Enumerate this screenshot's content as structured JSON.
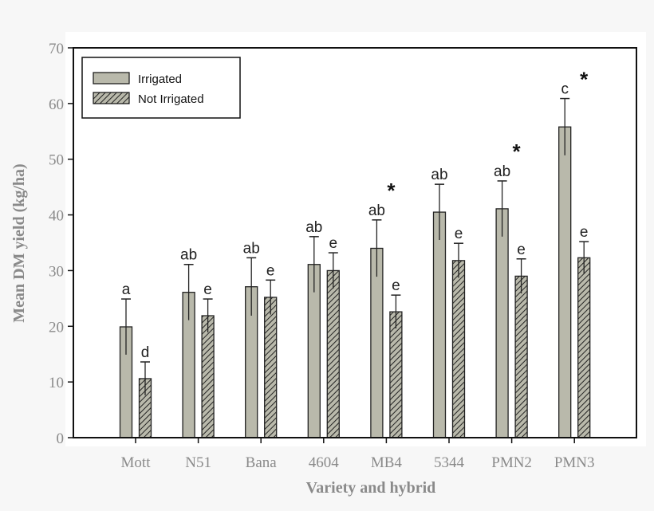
{
  "chart_data": {
    "type": "bar",
    "title": "",
    "xlabel": "Variety and hybrid",
    "ylabel": "Mean DM yield (kg/ha)",
    "ylim": [
      0,
      70
    ],
    "yticks": [
      0,
      10,
      20,
      30,
      40,
      50,
      60,
      70
    ],
    "grid": false,
    "legend_position": "top-left",
    "categories": [
      "Mott",
      "N51",
      "Bana",
      "4604",
      "MB4",
      "5344",
      "PMN2",
      "PMN3"
    ],
    "series": [
      {
        "name": "Irrigated",
        "pattern": "solid",
        "color": "#b9b9ab",
        "values": [
          19.9,
          26.1,
          27.1,
          31.1,
          34.0,
          40.5,
          41.1,
          55.8
        ],
        "error": [
          5.0,
          5.0,
          5.2,
          5.0,
          5.1,
          5.0,
          5.0,
          5.1
        ],
        "letters": [
          "a",
          "ab",
          "ab",
          "ab",
          "ab",
          "ab",
          "ab",
          "c"
        ]
      },
      {
        "name": "Not Irrigated",
        "pattern": "hatched",
        "color": "#b9b9ab",
        "values": [
          10.6,
          21.9,
          25.2,
          30.0,
          22.6,
          31.8,
          29.0,
          32.3
        ],
        "error": [
          3.0,
          3.0,
          3.1,
          3.2,
          3.0,
          3.1,
          3.1,
          2.9
        ],
        "letters": [
          "d",
          "e",
          "e",
          "e",
          "e",
          "e",
          "e",
          "e"
        ]
      }
    ],
    "significance_marker": "*",
    "significant_categories": [
      "MB4",
      "PMN2",
      "PMN3"
    ]
  }
}
